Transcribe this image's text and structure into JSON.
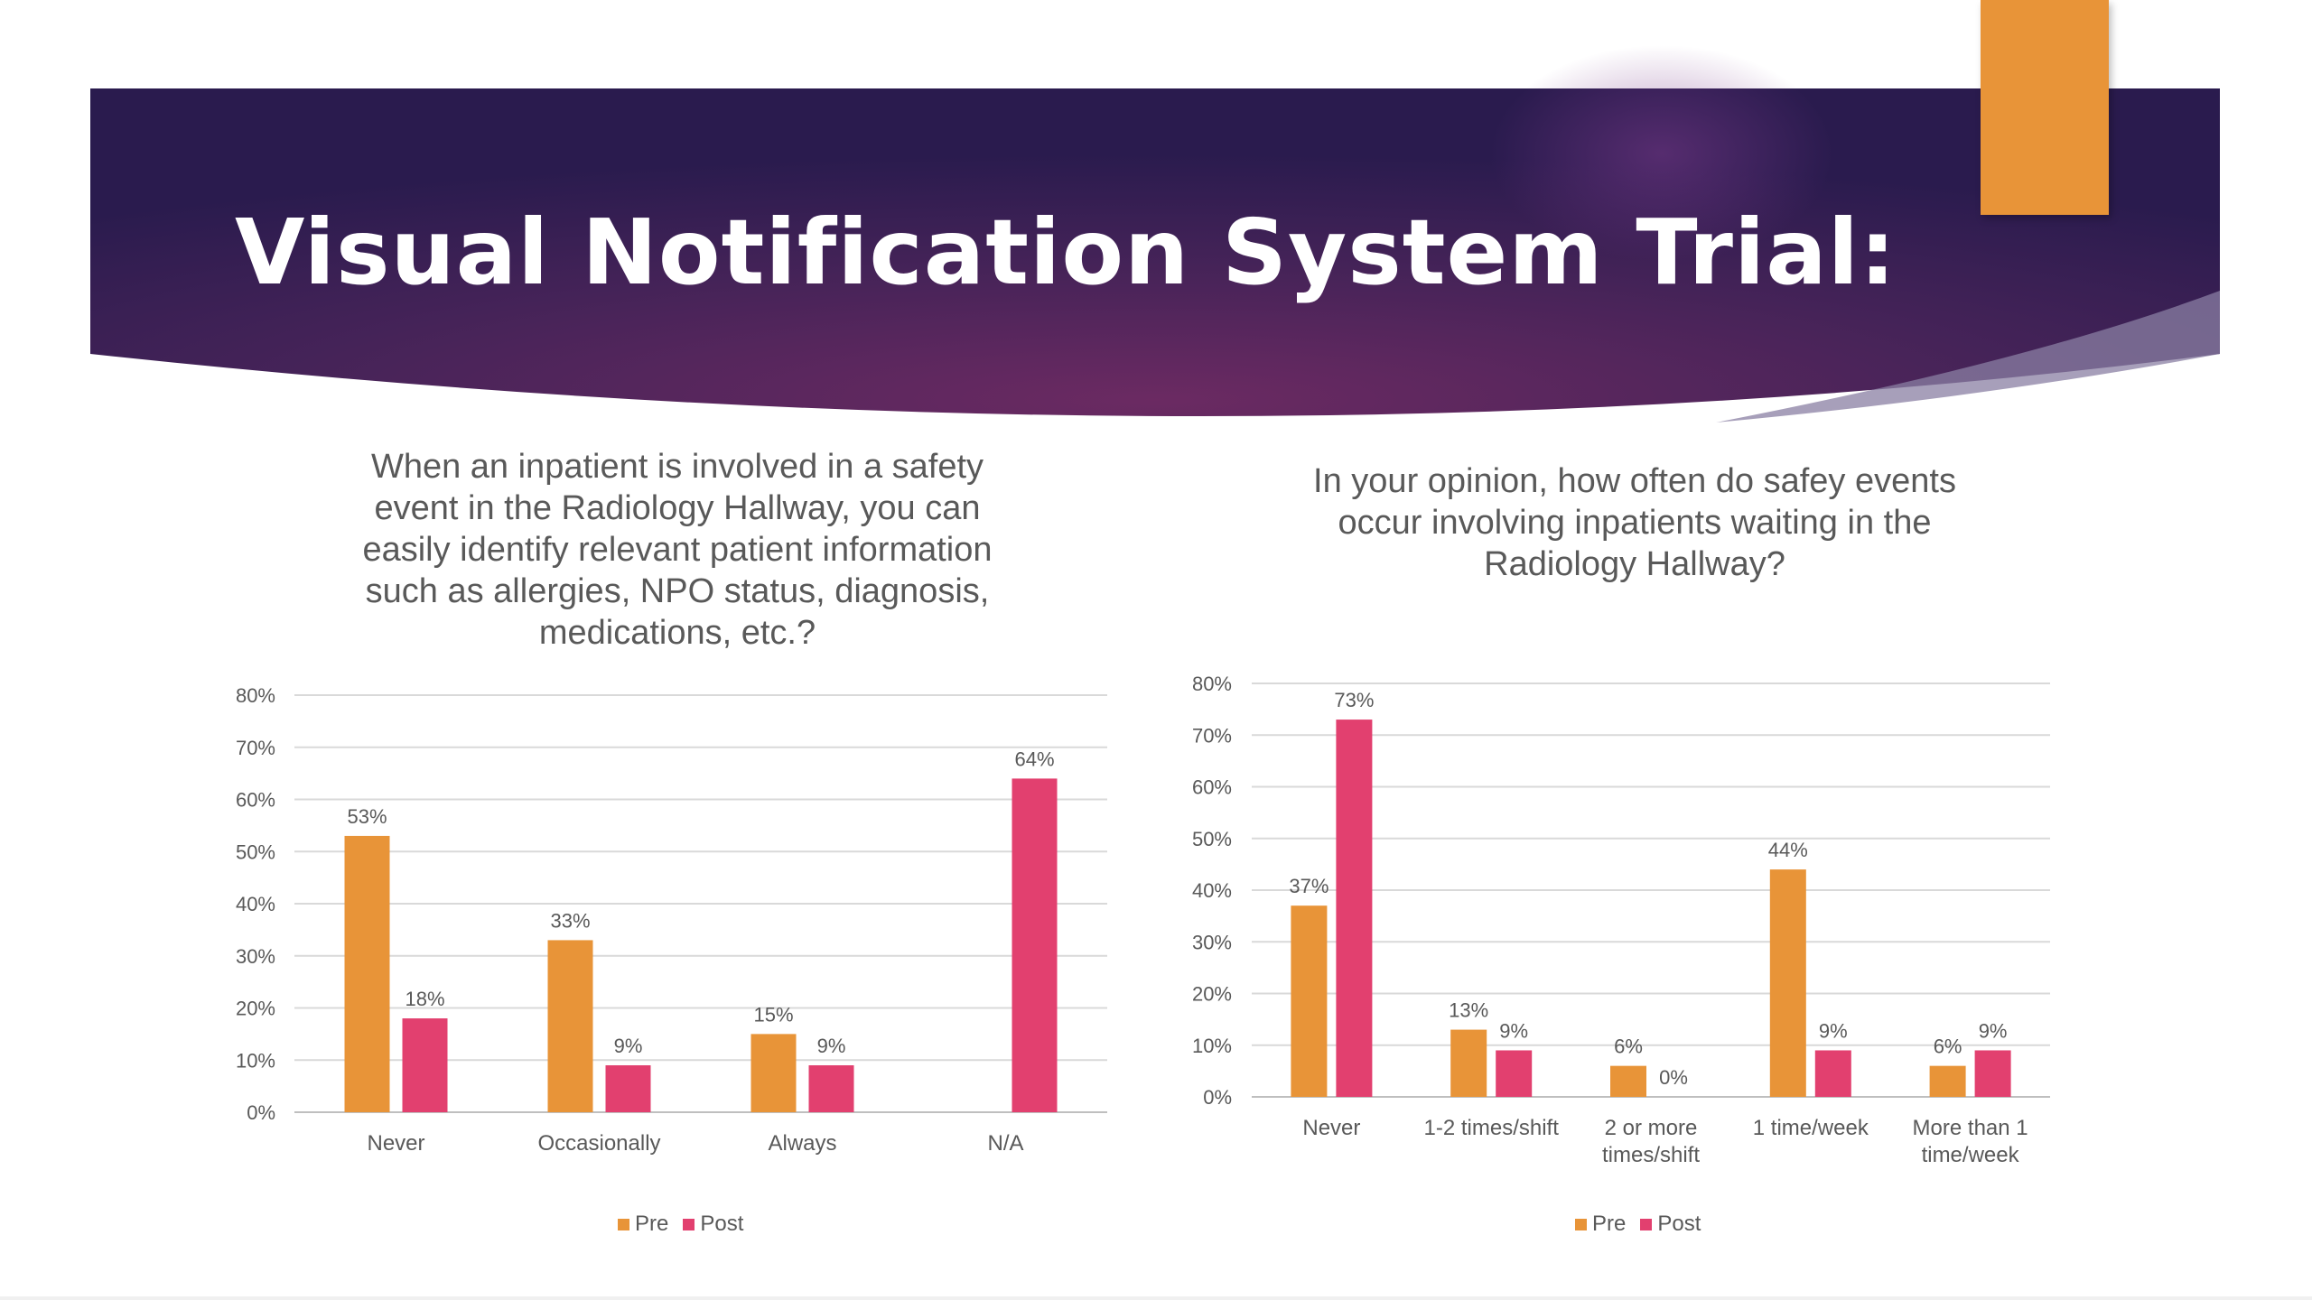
{
  "slide": {
    "title": "Visual Notification System Trial:",
    "colors": {
      "banner_dark": "#2a1b4e",
      "banner_mid": "#6b2a62",
      "accent_tab": "#e89438",
      "pre": "#e89438",
      "post": "#e2406f",
      "text": "#595959",
      "grid": "#d9d9d9"
    }
  },
  "charts": [
    {
      "title_lines": [
        "When an inpatient is involved in a safety",
        "event in the Radiology Hallway, you can",
        "easily identify relevant patient information",
        "such as allergies, NPO status, diagnosis,",
        "medications, etc.?"
      ],
      "legend": [
        "Pre",
        "Post"
      ]
    },
    {
      "title_lines": [
        "In your opinion, how often do safey events",
        "occur involving inpatients waiting in the",
        "Radiology Hallway?"
      ],
      "legend": [
        "Pre",
        "Post"
      ]
    }
  ],
  "chart_data": [
    {
      "type": "bar",
      "title": "When an inpatient is involved in a safety event in the Radiology Hallway, you can easily identify relevant patient information such as allergies, NPO status, diagnosis, medications, etc.?",
      "categories": [
        [
          "Never"
        ],
        [
          "Occasionally"
        ],
        [
          "Always"
        ],
        [
          "N/A"
        ]
      ],
      "series": [
        {
          "name": "Pre",
          "values": [
            53,
            33,
            15,
            null
          ],
          "labels": [
            "53%",
            "33%",
            "15%",
            ""
          ],
          "color": "#e89438"
        },
        {
          "name": "Post",
          "values": [
            18,
            9,
            9,
            64
          ],
          "labels": [
            "18%",
            "9%",
            "9%",
            "64%"
          ],
          "color": "#e2406f"
        }
      ],
      "yticks": [
        "0%",
        "10%",
        "20%",
        "30%",
        "40%",
        "50%",
        "60%",
        "70%",
        "80%"
      ],
      "ylim": [
        0,
        80
      ],
      "grid": true,
      "legend_position": "bottom"
    },
    {
      "type": "bar",
      "title": "In your opinion, how often do safey events occur involving inpatients waiting in the Radiology Hallway?",
      "categories": [
        [
          "Never"
        ],
        [
          "1-2 times/shift"
        ],
        [
          "2 or more",
          "times/shift"
        ],
        [
          "1 time/week"
        ],
        [
          "More than 1",
          "time/week"
        ]
      ],
      "series": [
        {
          "name": "Pre",
          "values": [
            37,
            13,
            6,
            44,
            6
          ],
          "labels": [
            "37%",
            "13%",
            "6%",
            "44%",
            "6%"
          ],
          "color": "#e89438"
        },
        {
          "name": "Post",
          "values": [
            73,
            9,
            0,
            9,
            9
          ],
          "labels": [
            "73%",
            "9%",
            "0%",
            "9%",
            "9%"
          ],
          "color": "#e2406f"
        }
      ],
      "yticks": [
        "0%",
        "10%",
        "20%",
        "30%",
        "40%",
        "50%",
        "60%",
        "70%",
        "80%"
      ],
      "ylim": [
        0,
        80
      ],
      "grid": true,
      "legend_position": "bottom"
    }
  ]
}
